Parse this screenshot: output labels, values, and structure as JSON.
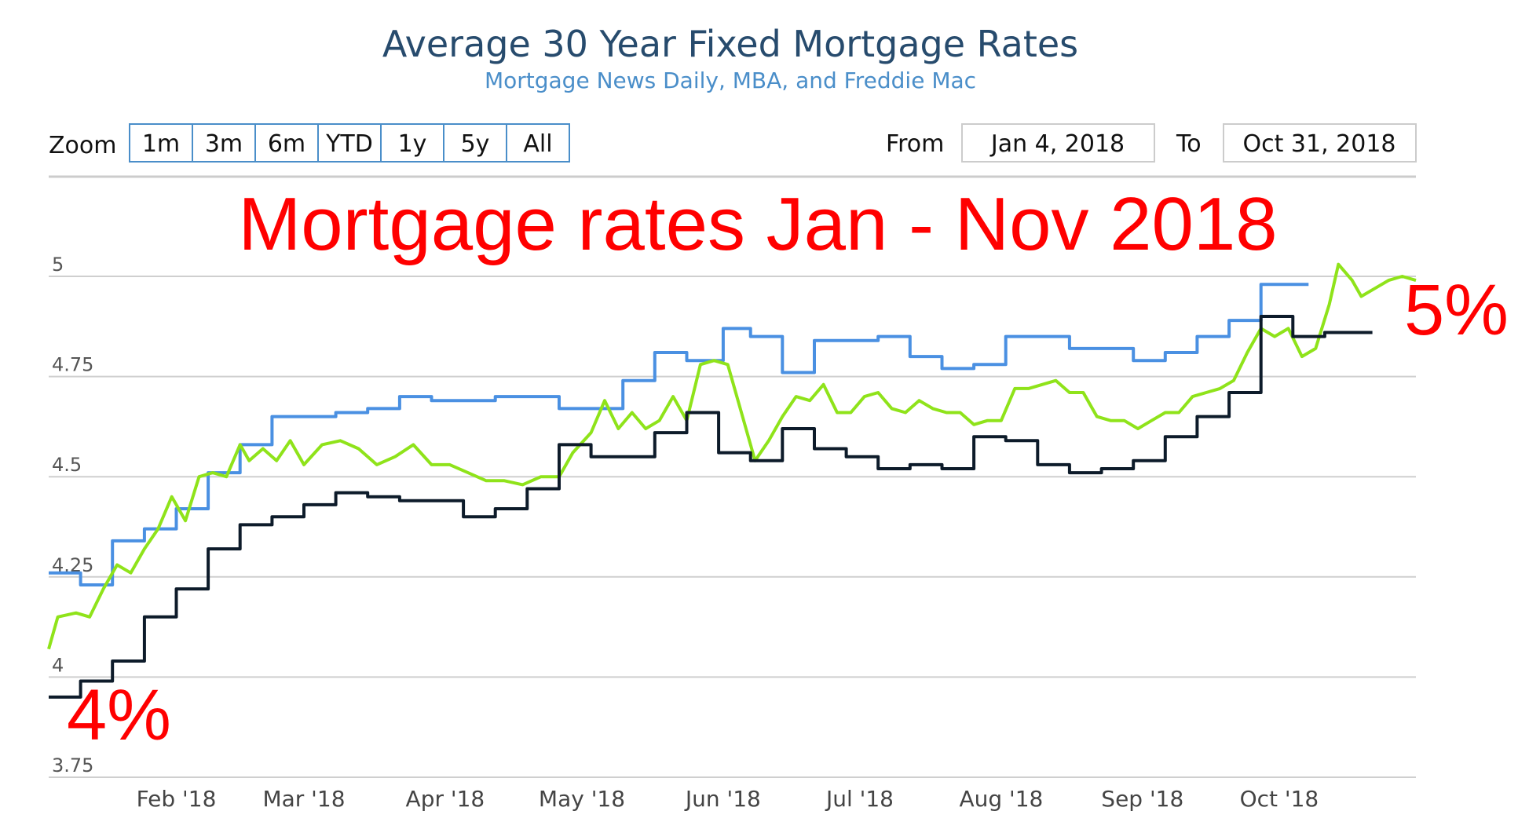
{
  "header": {
    "title": "Average 30 Year Fixed Mortgage Rates",
    "subtitle": "Mortgage News Daily, MBA, and Freddie Mac"
  },
  "zoom": {
    "label": "Zoom",
    "buttons": [
      "1m",
      "3m",
      "6m",
      "YTD",
      "1y",
      "5y",
      "All"
    ]
  },
  "range": {
    "from_label": "From",
    "from_value": "Jan 4, 2018",
    "to_label": "To",
    "to_value": "Oct 31, 2018"
  },
  "annotations": {
    "overlay_title": "Mortgage rates Jan - Nov 2018",
    "start_label": "4%",
    "end_label": "5%",
    "color": "#ff0000"
  },
  "colors": {
    "title": "#274b6d",
    "subtitle": "#4a8ec9",
    "blue_series": "#4a90e2",
    "green_series": "#8fe31a",
    "navy_series": "#0d1b2a"
  },
  "chart_data": {
    "type": "line",
    "ylim": [
      3.75,
      5.0
    ],
    "yticks": [
      "3.75",
      "4",
      "4.25",
      "4.5",
      "4.75",
      "5"
    ],
    "xlim": [
      "2018-01-04",
      "2018-10-31"
    ],
    "xticks": [
      {
        "label": "Feb '18",
        "date": "2018-02-01"
      },
      {
        "label": "Mar '18",
        "date": "2018-03-01"
      },
      {
        "label": "Apr '18",
        "date": "2018-04-01"
      },
      {
        "label": "May '18",
        "date": "2018-05-01"
      },
      {
        "label": "Jun '18",
        "date": "2018-06-01"
      },
      {
        "label": "Jul '18",
        "date": "2018-07-01"
      },
      {
        "label": "Aug '18",
        "date": "2018-08-01"
      },
      {
        "label": "Sep '18",
        "date": "2018-09-01"
      },
      {
        "label": "Oct '18",
        "date": "2018-10-01"
      }
    ],
    "series": [
      {
        "color": "#4a90e2",
        "step": true,
        "points": [
          [
            "2018-01-04",
            4.26
          ],
          [
            "2018-01-11",
            4.23
          ],
          [
            "2018-01-18",
            4.34
          ],
          [
            "2018-01-25",
            4.37
          ],
          [
            "2018-02-01",
            4.42
          ],
          [
            "2018-02-08",
            4.51
          ],
          [
            "2018-02-15",
            4.58
          ],
          [
            "2018-02-22",
            4.65
          ],
          [
            "2018-03-08",
            4.66
          ],
          [
            "2018-03-15",
            4.67
          ],
          [
            "2018-03-22",
            4.7
          ],
          [
            "2018-03-29",
            4.69
          ],
          [
            "2018-04-12",
            4.7
          ],
          [
            "2018-04-26",
            4.67
          ],
          [
            "2018-05-01",
            4.67
          ],
          [
            "2018-05-10",
            4.74
          ],
          [
            "2018-05-17",
            4.81
          ],
          [
            "2018-05-24",
            4.79
          ],
          [
            "2018-06-01",
            4.87
          ],
          [
            "2018-06-07",
            4.85
          ],
          [
            "2018-06-14",
            4.76
          ],
          [
            "2018-06-21",
            4.84
          ],
          [
            "2018-07-05",
            4.85
          ],
          [
            "2018-07-12",
            4.8
          ],
          [
            "2018-07-19",
            4.77
          ],
          [
            "2018-07-26",
            4.78
          ],
          [
            "2018-08-02",
            4.85
          ],
          [
            "2018-08-16",
            4.82
          ],
          [
            "2018-08-30",
            4.79
          ],
          [
            "2018-09-06",
            4.81
          ],
          [
            "2018-09-13",
            4.85
          ],
          [
            "2018-09-20",
            4.89
          ],
          [
            "2018-09-27",
            4.98
          ],
          [
            "2018-10-04",
            4.98
          ]
        ]
      },
      {
        "color": "#8fe31a",
        "step": false,
        "points": [
          [
            "2018-01-04",
            4.07
          ],
          [
            "2018-01-06",
            4.15
          ],
          [
            "2018-01-10",
            4.16
          ],
          [
            "2018-01-13",
            4.15
          ],
          [
            "2018-01-16",
            4.22
          ],
          [
            "2018-01-19",
            4.28
          ],
          [
            "2018-01-22",
            4.26
          ],
          [
            "2018-01-25",
            4.32
          ],
          [
            "2018-01-28",
            4.37
          ],
          [
            "2018-01-31",
            4.45
          ],
          [
            "2018-02-03",
            4.39
          ],
          [
            "2018-02-06",
            4.5
          ],
          [
            "2018-02-09",
            4.51
          ],
          [
            "2018-02-12",
            4.5
          ],
          [
            "2018-02-15",
            4.58
          ],
          [
            "2018-02-17",
            4.54
          ],
          [
            "2018-02-20",
            4.57
          ],
          [
            "2018-02-23",
            4.54
          ],
          [
            "2018-02-26",
            4.59
          ],
          [
            "2018-03-01",
            4.53
          ],
          [
            "2018-03-05",
            4.58
          ],
          [
            "2018-03-09",
            4.59
          ],
          [
            "2018-03-13",
            4.57
          ],
          [
            "2018-03-17",
            4.53
          ],
          [
            "2018-03-21",
            4.55
          ],
          [
            "2018-03-25",
            4.58
          ],
          [
            "2018-03-29",
            4.53
          ],
          [
            "2018-04-02",
            4.53
          ],
          [
            "2018-04-06",
            4.51
          ],
          [
            "2018-04-10",
            4.49
          ],
          [
            "2018-04-14",
            4.49
          ],
          [
            "2018-04-18",
            4.48
          ],
          [
            "2018-04-22",
            4.5
          ],
          [
            "2018-04-26",
            4.5
          ],
          [
            "2018-04-29",
            4.56
          ],
          [
            "2018-05-03",
            4.61
          ],
          [
            "2018-05-06",
            4.69
          ],
          [
            "2018-05-09",
            4.62
          ],
          [
            "2018-05-12",
            4.66
          ],
          [
            "2018-05-15",
            4.62
          ],
          [
            "2018-05-18",
            4.64
          ],
          [
            "2018-05-21",
            4.7
          ],
          [
            "2018-05-24",
            4.64
          ],
          [
            "2018-05-27",
            4.78
          ],
          [
            "2018-05-30",
            4.79
          ],
          [
            "2018-06-02",
            4.78
          ],
          [
            "2018-06-05",
            4.66
          ],
          [
            "2018-06-08",
            4.54
          ],
          [
            "2018-06-11",
            4.59
          ],
          [
            "2018-06-14",
            4.65
          ],
          [
            "2018-06-17",
            4.7
          ],
          [
            "2018-06-20",
            4.69
          ],
          [
            "2018-06-23",
            4.73
          ],
          [
            "2018-06-26",
            4.66
          ],
          [
            "2018-06-29",
            4.66
          ],
          [
            "2018-07-02",
            4.7
          ],
          [
            "2018-07-05",
            4.71
          ],
          [
            "2018-07-08",
            4.67
          ],
          [
            "2018-07-11",
            4.66
          ],
          [
            "2018-07-14",
            4.69
          ],
          [
            "2018-07-17",
            4.67
          ],
          [
            "2018-07-20",
            4.66
          ],
          [
            "2018-07-23",
            4.66
          ],
          [
            "2018-07-26",
            4.63
          ],
          [
            "2018-07-29",
            4.64
          ],
          [
            "2018-08-01",
            4.64
          ],
          [
            "2018-08-04",
            4.72
          ],
          [
            "2018-08-07",
            4.72
          ],
          [
            "2018-08-10",
            4.73
          ],
          [
            "2018-08-13",
            4.74
          ],
          [
            "2018-08-16",
            4.71
          ],
          [
            "2018-08-19",
            4.71
          ],
          [
            "2018-08-22",
            4.65
          ],
          [
            "2018-08-25",
            4.64
          ],
          [
            "2018-08-28",
            4.64
          ],
          [
            "2018-08-31",
            4.62
          ],
          [
            "2018-09-03",
            4.64
          ],
          [
            "2018-09-06",
            4.66
          ],
          [
            "2018-09-09",
            4.66
          ],
          [
            "2018-09-12",
            4.7
          ],
          [
            "2018-09-15",
            4.71
          ],
          [
            "2018-09-18",
            4.72
          ],
          [
            "2018-09-21",
            4.74
          ],
          [
            "2018-09-24",
            4.81
          ],
          [
            "2018-09-27",
            4.87
          ],
          [
            "2018-09-30",
            4.85
          ],
          [
            "2018-10-03",
            4.87
          ],
          [
            "2018-10-06",
            4.8
          ],
          [
            "2018-10-09",
            4.82
          ],
          [
            "2018-10-12",
            4.93
          ],
          [
            "2018-10-14",
            5.03
          ],
          [
            "2018-10-17",
            4.99
          ],
          [
            "2018-10-19",
            4.95
          ],
          [
            "2018-10-22",
            4.97
          ],
          [
            "2018-10-25",
            4.99
          ],
          [
            "2018-10-28",
            5.0
          ],
          [
            "2018-10-31",
            4.99
          ]
        ]
      },
      {
        "color": "#0d1b2a",
        "step": true,
        "points": [
          [
            "2018-01-04",
            3.95
          ],
          [
            "2018-01-11",
            3.99
          ],
          [
            "2018-01-18",
            4.04
          ],
          [
            "2018-01-25",
            4.15
          ],
          [
            "2018-02-01",
            4.22
          ],
          [
            "2018-02-08",
            4.32
          ],
          [
            "2018-02-15",
            4.38
          ],
          [
            "2018-02-22",
            4.4
          ],
          [
            "2018-03-01",
            4.43
          ],
          [
            "2018-03-08",
            4.46
          ],
          [
            "2018-03-15",
            4.45
          ],
          [
            "2018-03-22",
            4.44
          ],
          [
            "2018-03-29",
            4.44
          ],
          [
            "2018-04-05",
            4.4
          ],
          [
            "2018-04-12",
            4.42
          ],
          [
            "2018-04-19",
            4.47
          ],
          [
            "2018-04-26",
            4.58
          ],
          [
            "2018-05-03",
            4.55
          ],
          [
            "2018-05-10",
            4.55
          ],
          [
            "2018-05-17",
            4.61
          ],
          [
            "2018-05-24",
            4.66
          ],
          [
            "2018-05-31",
            4.56
          ],
          [
            "2018-06-07",
            4.54
          ],
          [
            "2018-06-14",
            4.62
          ],
          [
            "2018-06-21",
            4.57
          ],
          [
            "2018-06-28",
            4.55
          ],
          [
            "2018-07-05",
            4.52
          ],
          [
            "2018-07-12",
            4.53
          ],
          [
            "2018-07-19",
            4.52
          ],
          [
            "2018-07-26",
            4.6
          ],
          [
            "2018-08-02",
            4.59
          ],
          [
            "2018-08-09",
            4.53
          ],
          [
            "2018-08-16",
            4.51
          ],
          [
            "2018-08-23",
            4.52
          ],
          [
            "2018-08-30",
            4.54
          ],
          [
            "2018-09-06",
            4.6
          ],
          [
            "2018-09-13",
            4.65
          ],
          [
            "2018-09-20",
            4.71
          ],
          [
            "2018-09-27",
            4.9
          ],
          [
            "2018-10-04",
            4.85
          ],
          [
            "2018-10-11",
            4.86
          ],
          [
            "2018-10-18",
            4.86
          ]
        ]
      }
    ]
  }
}
